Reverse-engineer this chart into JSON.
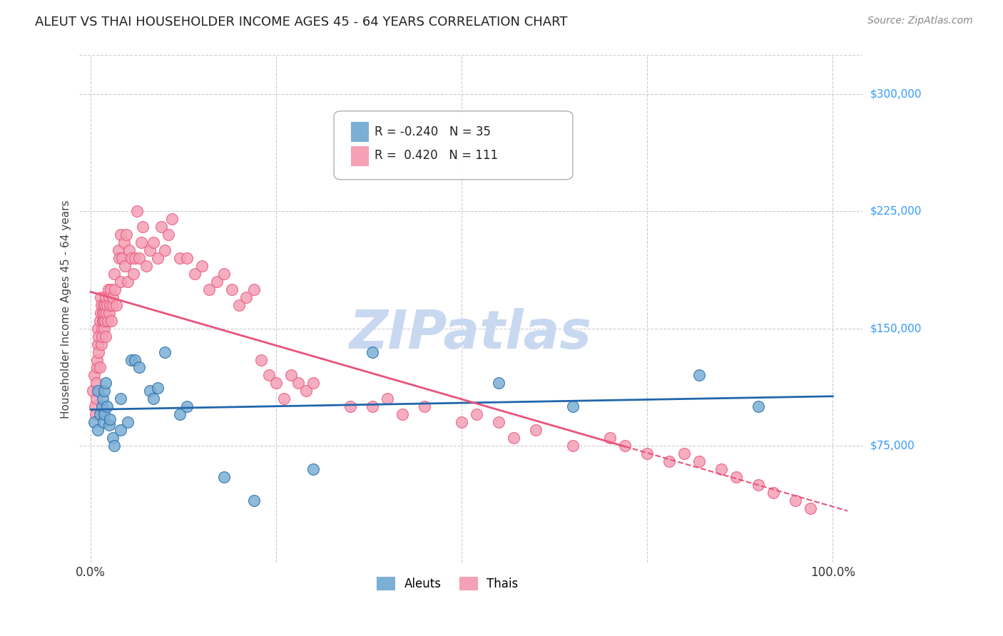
{
  "title": "ALEUT VS THAI HOUSEHOLDER INCOME AGES 45 - 64 YEARS CORRELATION CHART",
  "source": "Source: ZipAtlas.com",
  "ylabel": "Householder Income Ages 45 - 64 years",
  "ytick_values": [
    75000,
    150000,
    225000,
    300000
  ],
  "ytick_labels": [
    "$75,000",
    "$150,000",
    "$225,000",
    "$300,000"
  ],
  "ymin": 0,
  "ymax": 325000,
  "xmin": 0.0,
  "xmax": 1.0,
  "legend_aleut": "Aleuts",
  "legend_thai": "Thais",
  "aleut_r": "-0.240",
  "aleut_n": "35",
  "thai_r": "0.420",
  "thai_n": "111",
  "aleut_color": "#7bafd4",
  "thai_color": "#f4a0b5",
  "aleut_line_color": "#2166ac",
  "thai_line_color": "#e8537a",
  "background_color": "#ffffff",
  "grid_color": "#cccccc",
  "watermark_color": "#c8d8f0",
  "title_color": "#222222",
  "source_color": "#888888",
  "right_label_color": "#3399ff",
  "aleuts_x": [
    0.005,
    0.01,
    0.01,
    0.012,
    0.015,
    0.016,
    0.017,
    0.018,
    0.018,
    0.02,
    0.022,
    0.025,
    0.026,
    0.03,
    0.032,
    0.04,
    0.04,
    0.05,
    0.055,
    0.06,
    0.065,
    0.08,
    0.085,
    0.09,
    0.1,
    0.12,
    0.13,
    0.18,
    0.22,
    0.3,
    0.38,
    0.55,
    0.65,
    0.82,
    0.9
  ],
  "aleuts_y": [
    90000,
    85000,
    110000,
    95000,
    100000,
    105000,
    90000,
    95000,
    110000,
    115000,
    100000,
    88000,
    92000,
    80000,
    75000,
    85000,
    105000,
    90000,
    130000,
    130000,
    125000,
    110000,
    105000,
    112000,
    135000,
    95000,
    100000,
    55000,
    40000,
    60000,
    135000,
    115000,
    100000,
    120000,
    100000
  ],
  "thais_x": [
    0.003,
    0.005,
    0.006,
    0.007,
    0.008,
    0.008,
    0.009,
    0.009,
    0.01,
    0.01,
    0.011,
    0.011,
    0.012,
    0.012,
    0.013,
    0.013,
    0.014,
    0.014,
    0.015,
    0.015,
    0.016,
    0.016,
    0.017,
    0.017,
    0.018,
    0.018,
    0.019,
    0.019,
    0.02,
    0.02,
    0.021,
    0.022,
    0.023,
    0.024,
    0.025,
    0.025,
    0.026,
    0.027,
    0.028,
    0.03,
    0.03,
    0.032,
    0.033,
    0.035,
    0.037,
    0.038,
    0.04,
    0.04,
    0.042,
    0.045,
    0.046,
    0.048,
    0.05,
    0.052,
    0.055,
    0.058,
    0.06,
    0.062,
    0.065,
    0.068,
    0.07,
    0.075,
    0.08,
    0.085,
    0.09,
    0.095,
    0.1,
    0.105,
    0.11,
    0.12,
    0.13,
    0.14,
    0.15,
    0.16,
    0.17,
    0.18,
    0.19,
    0.2,
    0.21,
    0.22,
    0.23,
    0.24,
    0.25,
    0.26,
    0.27,
    0.28,
    0.29,
    0.3,
    0.35,
    0.38,
    0.4,
    0.42,
    0.45,
    0.5,
    0.52,
    0.55,
    0.57,
    0.6,
    0.65,
    0.7,
    0.72,
    0.75,
    0.78,
    0.8,
    0.82,
    0.85,
    0.87,
    0.9,
    0.92,
    0.95,
    0.97
  ],
  "thais_y": [
    110000,
    120000,
    100000,
    95000,
    105000,
    115000,
    125000,
    130000,
    140000,
    150000,
    135000,
    145000,
    155000,
    125000,
    160000,
    170000,
    165000,
    140000,
    150000,
    145000,
    155000,
    160000,
    155000,
    165000,
    150000,
    160000,
    165000,
    155000,
    170000,
    145000,
    160000,
    165000,
    155000,
    175000,
    160000,
    170000,
    165000,
    175000,
    155000,
    165000,
    170000,
    185000,
    175000,
    165000,
    200000,
    195000,
    180000,
    210000,
    195000,
    205000,
    190000,
    210000,
    180000,
    200000,
    195000,
    185000,
    195000,
    225000,
    195000,
    205000,
    215000,
    190000,
    200000,
    205000,
    195000,
    215000,
    200000,
    210000,
    220000,
    195000,
    195000,
    185000,
    190000,
    175000,
    180000,
    185000,
    175000,
    165000,
    170000,
    175000,
    130000,
    120000,
    115000,
    105000,
    120000,
    115000,
    110000,
    115000,
    100000,
    100000,
    105000,
    95000,
    100000,
    90000,
    95000,
    90000,
    80000,
    85000,
    75000,
    80000,
    75000,
    70000,
    65000,
    70000,
    65000,
    60000,
    55000,
    50000,
    45000,
    40000,
    35000
  ]
}
